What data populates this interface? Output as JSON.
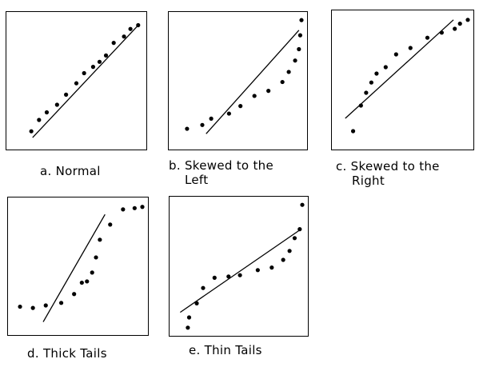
{
  "panels": [
    {
      "id": "a",
      "caption": [
        "a. Normal"
      ],
      "line": [
        [
          0.16,
          0.05
        ],
        [
          0.99,
          0.95
        ]
      ],
      "points": [
        [
          0.15,
          0.1
        ],
        [
          0.21,
          0.19
        ],
        [
          0.27,
          0.25
        ],
        [
          0.35,
          0.31
        ],
        [
          0.42,
          0.39
        ],
        [
          0.5,
          0.48
        ],
        [
          0.56,
          0.56
        ],
        [
          0.63,
          0.61
        ],
        [
          0.68,
          0.65
        ],
        [
          0.73,
          0.7
        ],
        [
          0.79,
          0.8
        ],
        [
          0.87,
          0.85
        ],
        [
          0.92,
          0.91
        ],
        [
          0.98,
          0.94
        ]
      ]
    },
    {
      "id": "b",
      "caption": [
        "b. Skewed to the",
        "Left"
      ],
      "line": [
        [
          0.25,
          0.08
        ],
        [
          0.98,
          0.9
        ]
      ],
      "points": [
        [
          0.1,
          0.12
        ],
        [
          0.22,
          0.15
        ],
        [
          0.29,
          0.2
        ],
        [
          0.43,
          0.24
        ],
        [
          0.52,
          0.3
        ],
        [
          0.63,
          0.38
        ],
        [
          0.74,
          0.42
        ],
        [
          0.85,
          0.49
        ],
        [
          0.9,
          0.57
        ],
        [
          0.95,
          0.66
        ],
        [
          0.98,
          0.75
        ],
        [
          0.99,
          0.86
        ],
        [
          1.0,
          0.98
        ]
      ]
    },
    {
      "id": "c",
      "caption": [
        "c. Skewed to the",
        "Right"
      ],
      "line": [
        [
          0.06,
          0.2
        ],
        [
          0.89,
          0.97
        ]
      ],
      "points": [
        [
          0.12,
          0.1
        ],
        [
          0.18,
          0.3
        ],
        [
          0.22,
          0.4
        ],
        [
          0.26,
          0.48
        ],
        [
          0.3,
          0.55
        ],
        [
          0.37,
          0.6
        ],
        [
          0.45,
          0.7
        ],
        [
          0.56,
          0.75
        ],
        [
          0.69,
          0.83
        ],
        [
          0.8,
          0.87
        ],
        [
          0.9,
          0.9
        ],
        [
          0.94,
          0.94
        ],
        [
          1.0,
          0.97
        ]
      ]
    },
    {
      "id": "d",
      "caption": [
        "d. Thick Tails"
      ],
      "line": [
        [
          0.23,
          0.06
        ],
        [
          0.71,
          0.91
        ]
      ],
      "points": [
        [
          0.05,
          0.18
        ],
        [
          0.15,
          0.17
        ],
        [
          0.25,
          0.19
        ],
        [
          0.37,
          0.21
        ],
        [
          0.47,
          0.28
        ],
        [
          0.53,
          0.37
        ],
        [
          0.57,
          0.38
        ],
        [
          0.61,
          0.45
        ],
        [
          0.64,
          0.57
        ],
        [
          0.67,
          0.71
        ],
        [
          0.75,
          0.83
        ],
        [
          0.85,
          0.95
        ],
        [
          0.94,
          0.96
        ],
        [
          1.0,
          0.97
        ]
      ]
    },
    {
      "id": "e",
      "caption": [
        "e. Thin Tails"
      ],
      "line": [
        [
          0.04,
          0.14
        ],
        [
          0.99,
          0.79
        ]
      ],
      "points": [
        [
          0.1,
          0.02
        ],
        [
          0.11,
          0.1
        ],
        [
          0.17,
          0.21
        ],
        [
          0.22,
          0.33
        ],
        [
          0.31,
          0.41
        ],
        [
          0.42,
          0.42
        ],
        [
          0.51,
          0.43
        ],
        [
          0.65,
          0.47
        ],
        [
          0.76,
          0.49
        ],
        [
          0.85,
          0.55
        ],
        [
          0.9,
          0.62
        ],
        [
          0.94,
          0.72
        ],
        [
          0.98,
          0.79
        ],
        [
          1.0,
          0.98
        ]
      ]
    }
  ]
}
